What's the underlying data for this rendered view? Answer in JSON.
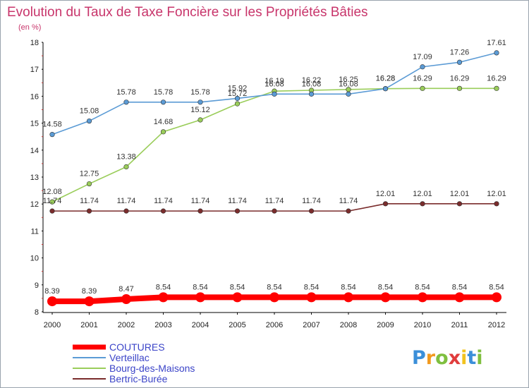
{
  "chart_data": {
    "type": "line",
    "title": "Evolution du Taux de Taxe Foncière sur les Propriétés Bâties",
    "subtitle": "(en %)",
    "categories": [
      "2000",
      "2001",
      "2002",
      "2003",
      "2004",
      "2005",
      "2006",
      "2007",
      "2008",
      "2009",
      "2010",
      "2011",
      "2012"
    ],
    "ylim": [
      8,
      18
    ],
    "yticks": [
      "8",
      "9",
      "10",
      "11",
      "12",
      "13",
      "14",
      "15",
      "16",
      "17",
      "18"
    ],
    "grid": false,
    "legend_position": "bottom-left",
    "series": [
      {
        "name": "COUTURES",
        "color": "#ff0000",
        "values": [
          8.39,
          8.39,
          8.47,
          8.54,
          8.54,
          8.54,
          8.54,
          8.54,
          8.54,
          8.54,
          8.54,
          8.54,
          8.54
        ],
        "labels": [
          "8.39",
          "8.39",
          "8.47",
          "8.54",
          "8.54",
          "8.54",
          "8.54",
          "8.54",
          "8.54",
          "8.54",
          "8.54",
          "8.54",
          "8.54"
        ]
      },
      {
        "name": "Verteillac",
        "color": "#5b9bd5",
        "values": [
          14.58,
          15.08,
          15.78,
          15.78,
          15.78,
          15.92,
          16.08,
          16.08,
          16.08,
          16.28,
          17.09,
          17.26,
          17.61
        ],
        "labels": [
          "14.58",
          "15.08",
          "15.78",
          "15.78",
          "15.78",
          "15.92",
          "16.08",
          "16.08",
          "16.08",
          "16.28",
          "17.09",
          "17.26",
          "17.61"
        ]
      },
      {
        "name": "Bourg-des-Maisons",
        "color": "#9acd5a",
        "values": [
          12.08,
          12.75,
          13.38,
          14.68,
          15.12,
          15.72,
          16.19,
          16.22,
          16.25,
          16.28,
          16.29,
          16.29,
          16.29
        ],
        "labels": [
          "12.08",
          "12.75",
          "13.38",
          "14.68",
          "15.12",
          "15.72",
          "16.19",
          "16.22",
          "16.25",
          "16.28",
          "16.29",
          "16.29",
          "16.29"
        ]
      },
      {
        "name": "Bertric-Burée",
        "color": "#7a2c2c",
        "values": [
          11.74,
          11.74,
          11.74,
          11.74,
          11.74,
          11.74,
          11.74,
          11.74,
          11.74,
          12.01,
          12.01,
          12.01,
          12.01
        ],
        "labels": [
          "11.74",
          "11.74",
          "11.74",
          "11.74",
          "11.74",
          "11.74",
          "11.74",
          "11.74",
          "11.74",
          "12.01",
          "12.01",
          "12.01",
          "12.01"
        ]
      }
    ]
  },
  "logo": {
    "letters": [
      "P",
      "r",
      "o",
      "x",
      "i",
      "t",
      "i"
    ],
    "colors": [
      "#3b8fd9",
      "#f29a1f",
      "#7fbf3f",
      "#e03c3c",
      "#f2c31f",
      "#3b8fd9",
      "#7fbf3f"
    ]
  }
}
